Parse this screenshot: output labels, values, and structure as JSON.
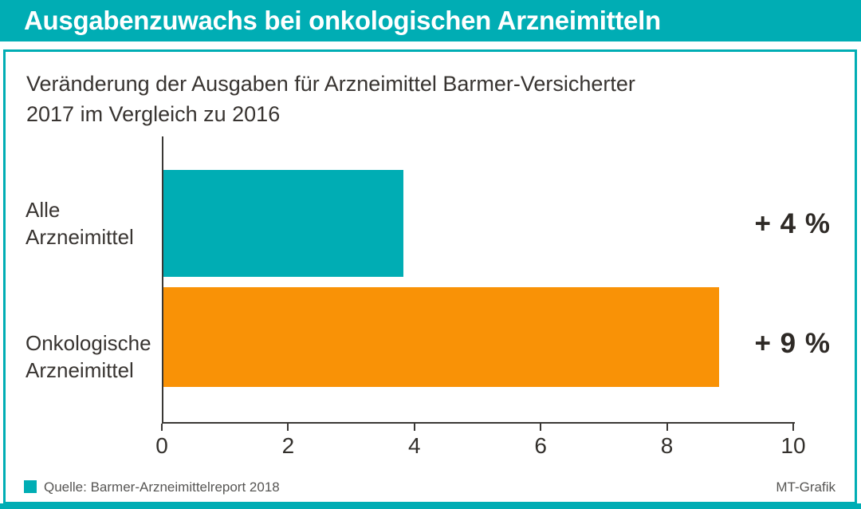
{
  "header": {
    "title": "Ausgabenzuwachs bei onkologischen Arzneimitteln"
  },
  "subtitle": {
    "line1": "Veränderung der Ausgaben für Arzneimittel Barmer-Versicherter",
    "line2": "2017 im Vergleich zu 2016"
  },
  "chart_data": {
    "type": "bar",
    "orientation": "horizontal",
    "categories": [
      "Alle\nArzneimittel",
      "Onkologische\nArzneimittel"
    ],
    "values": [
      3.8,
      8.8
    ],
    "value_labels": [
      "+ 4 %",
      "+ 9 %"
    ],
    "bar_colors": [
      "#00ADB4",
      "#F99206"
    ],
    "xlim": [
      0,
      10
    ],
    "x_ticks": [
      "0",
      "2",
      "4",
      "6",
      "8",
      "10"
    ],
    "xlabel": "",
    "ylabel": "",
    "grid": false,
    "legend_position": "none"
  },
  "footer": {
    "source": "Quelle: Barmer-Arzneimittelreport 2018",
    "credit": "MT-Grafik"
  },
  "colors": {
    "accent_teal": "#00ADB4",
    "accent_orange": "#F99206",
    "axis": "#3A3835",
    "text_dark": "#383431",
    "value_text": "#2E2A26",
    "footer_text": "#575654",
    "header_text": "#FFFFFF"
  }
}
